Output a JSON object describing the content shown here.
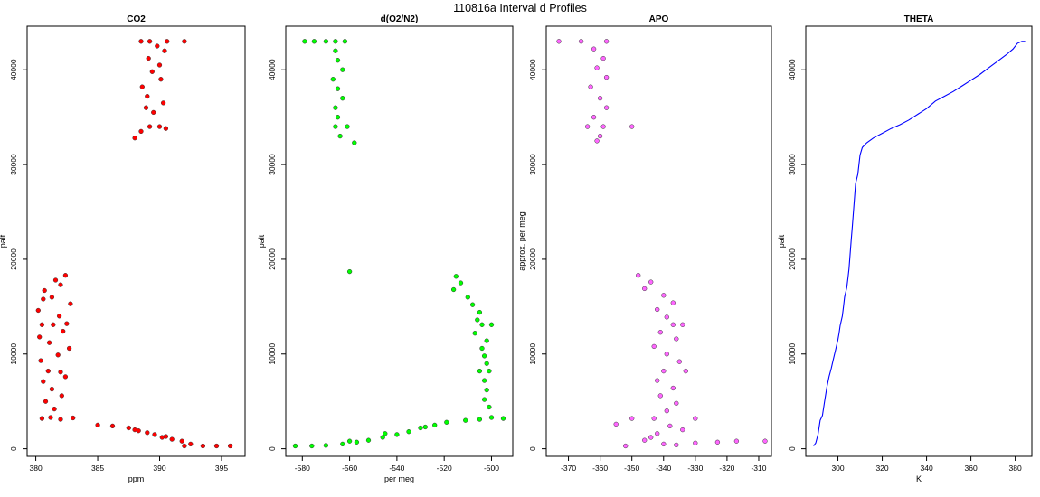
{
  "figure": {
    "title": "110816a   Interval d Profiles"
  },
  "chart_data": [
    {
      "type": "scatter",
      "title": "CO2",
      "xlabel": "ppm",
      "ylabel": "palt",
      "xlim": [
        379.3,
        396.9
      ],
      "ylim": [
        -800,
        44600
      ],
      "xticks": [
        380,
        385,
        390,
        395
      ],
      "yticks": [
        0,
        10000,
        20000,
        30000,
        40000
      ],
      "color": "#ff0000",
      "series": [
        {
          "points": [
            [
              380.5,
              3200
            ],
            [
              381.2,
              3300
            ],
            [
              382.0,
              3100
            ],
            [
              383.0,
              3250
            ],
            [
              381.5,
              4200
            ],
            [
              380.8,
              5000
            ],
            [
              382.1,
              5600
            ],
            [
              381.3,
              6300
            ],
            [
              380.6,
              7100
            ],
            [
              382.4,
              7600
            ],
            [
              381.0,
              8200
            ],
            [
              382.0,
              8100
            ],
            [
              380.4,
              9300
            ],
            [
              381.8,
              9900
            ],
            [
              382.7,
              10600
            ],
            [
              381.1,
              11200
            ],
            [
              380.3,
              11800
            ],
            [
              382.2,
              12400
            ],
            [
              381.4,
              13100
            ],
            [
              380.5,
              13100
            ],
            [
              382.5,
              13200
            ],
            [
              381.9,
              14000
            ],
            [
              380.2,
              14600
            ],
            [
              382.8,
              15300
            ],
            [
              381.3,
              16000
            ],
            [
              380.7,
              16700
            ],
            [
              382.0,
              17300
            ],
            [
              381.6,
              17800
            ],
            [
              382.4,
              18300
            ],
            [
              380.6,
              15800
            ],
            [
              385.0,
              2500
            ],
            [
              386.2,
              2400
            ],
            [
              387.5,
              2200
            ],
            [
              388.3,
              1900
            ],
            [
              389.0,
              1700
            ],
            [
              389.6,
              1500
            ],
            [
              390.2,
              1200
            ],
            [
              391.0,
              1000
            ],
            [
              391.8,
              800
            ],
            [
              392.5,
              500
            ],
            [
              393.5,
              300
            ],
            [
              394.6,
              300
            ],
            [
              395.7,
              300
            ],
            [
              392.0,
              300
            ],
            [
              388.0,
              2000
            ],
            [
              390.5,
              1300
            ],
            [
              388.0,
              32800
            ],
            [
              388.5,
              33500
            ],
            [
              389.2,
              34000
            ],
            [
              390.0,
              34000
            ],
            [
              389.5,
              35500
            ],
            [
              390.3,
              36500
            ],
            [
              389.0,
              37200
            ],
            [
              388.6,
              38200
            ],
            [
              390.1,
              39000
            ],
            [
              389.4,
              39800
            ],
            [
              390.0,
              40500
            ],
            [
              389.1,
              41200
            ],
            [
              390.4,
              42000
            ],
            [
              389.8,
              42500
            ],
            [
              390.6,
              43000
            ],
            [
              388.5,
              43000
            ],
            [
              392.0,
              43000
            ],
            [
              389.2,
              43000
            ],
            [
              388.9,
              36000
            ],
            [
              390.5,
              33800
            ]
          ]
        }
      ]
    },
    {
      "type": "scatter",
      "title": "d(O2/N2)",
      "xlabel": "per meg",
      "ylabel": "palt",
      "xlim": [
        -587,
        -491
      ],
      "ylim": [
        -800,
        44600
      ],
      "xticks": [
        -580,
        -560,
        -540,
        -520,
        -500
      ],
      "yticks": [
        0,
        10000,
        20000,
        30000,
        40000
      ],
      "color": "#00ff00",
      "series": [
        {
          "points": [
            [
              -579,
              43000
            ],
            [
              -570,
              43000
            ],
            [
              -562,
              43000
            ],
            [
              -575,
              43000
            ],
            [
              -566,
              43000
            ],
            [
              -566,
              42000
            ],
            [
              -565,
              41000
            ],
            [
              -563,
              40000
            ],
            [
              -567,
              39000
            ],
            [
              -565,
              38000
            ],
            [
              -563,
              37000
            ],
            [
              -566,
              36000
            ],
            [
              -565,
              35000
            ],
            [
              -566,
              34000
            ],
            [
              -561,
              34000
            ],
            [
              -558,
              32300
            ],
            [
              -564,
              33000
            ],
            [
              -560,
              18700
            ],
            [
              -515,
              18200
            ],
            [
              -513,
              17500
            ],
            [
              -516,
              16800
            ],
            [
              -510,
              16000
            ],
            [
              -508,
              15200
            ],
            [
              -505,
              14400
            ],
            [
              -506,
              13600
            ],
            [
              -504,
              13100
            ],
            [
              -500,
              13100
            ],
            [
              -507,
              12200
            ],
            [
              -502,
              11400
            ],
            [
              -504,
              10600
            ],
            [
              -503,
              9800
            ],
            [
              -502,
              9000
            ],
            [
              -501,
              8200
            ],
            [
              -505,
              8200
            ],
            [
              -503,
              7200
            ],
            [
              -502,
              6200
            ],
            [
              -503,
              5200
            ],
            [
              -501,
              4400
            ],
            [
              -500,
              3300
            ],
            [
              -495,
              3200
            ],
            [
              -505,
              3100
            ],
            [
              -511,
              3000
            ],
            [
              -519,
              2800
            ],
            [
              -524,
              2500
            ],
            [
              -530,
              2200
            ],
            [
              -535,
              1800
            ],
            [
              -540,
              1500
            ],
            [
              -546,
              1200
            ],
            [
              -552,
              900
            ],
            [
              -557,
              700
            ],
            [
              -563,
              500
            ],
            [
              -570,
              350
            ],
            [
              -576,
              300
            ],
            [
              -583,
              300
            ],
            [
              -560,
              800
            ],
            [
              -545,
              1600
            ],
            [
              -528,
              2300
            ]
          ]
        }
      ]
    },
    {
      "type": "scatter",
      "title": "APO",
      "xlabel": "",
      "ylabel": "approx. per meg",
      "xlim": [
        -377,
        -306
      ],
      "ylim": [
        -800,
        44600
      ],
      "xticks": [
        -370,
        -360,
        -350,
        -340,
        -330,
        -320,
        -310
      ],
      "yticks": [
        0,
        10000,
        20000,
        30000,
        40000
      ],
      "color": "#ff66ff",
      "series": [
        {
          "points": [
            [
              -373,
              43000
            ],
            [
              -366,
              43000
            ],
            [
              -358,
              43000
            ],
            [
              -362,
              42200
            ],
            [
              -359,
              41200
            ],
            [
              -361,
              40200
            ],
            [
              -358,
              39200
            ],
            [
              -363,
              38200
            ],
            [
              -360,
              37000
            ],
            [
              -358,
              36000
            ],
            [
              -362,
              35000
            ],
            [
              -359,
              34000
            ],
            [
              -364,
              34000
            ],
            [
              -350,
              34000
            ],
            [
              -360,
              33000
            ],
            [
              -361,
              32500
            ],
            [
              -348,
              18300
            ],
            [
              -344,
              17600
            ],
            [
              -346,
              16900
            ],
            [
              -340,
              16200
            ],
            [
              -337,
              15400
            ],
            [
              -342,
              14700
            ],
            [
              -339,
              13900
            ],
            [
              -337,
              13100
            ],
            [
              -334,
              13100
            ],
            [
              -341,
              12300
            ],
            [
              -336,
              11600
            ],
            [
              -343,
              10800
            ],
            [
              -339,
              10000
            ],
            [
              -335,
              9200
            ],
            [
              -340,
              8200
            ],
            [
              -333,
              8200
            ],
            [
              -342,
              7200
            ],
            [
              -337,
              6400
            ],
            [
              -341,
              5600
            ],
            [
              -336,
              4800
            ],
            [
              -339,
              4000
            ],
            [
              -343,
              3200
            ],
            [
              -330,
              3200
            ],
            [
              -350,
              3200
            ],
            [
              -338,
              2400
            ],
            [
              -342,
              1600
            ],
            [
              -346,
              900
            ],
            [
              -340,
              500
            ],
            [
              -336,
              400
            ],
            [
              -352,
              300
            ],
            [
              -330,
              600
            ],
            [
              -323,
              700
            ],
            [
              -317,
              800
            ],
            [
              -308,
              800
            ],
            [
              -344,
              1200
            ],
            [
              -334,
              2000
            ],
            [
              -355,
              2600
            ]
          ]
        }
      ]
    },
    {
      "type": "line",
      "title": "THETA",
      "xlabel": "K",
      "ylabel": "palt",
      "xlim": [
        285.5,
        387.5
      ],
      "ylim": [
        -800,
        44600
      ],
      "xticks": [
        300,
        320,
        340,
        360,
        380
      ],
      "yticks": [
        0,
        10000,
        20000,
        30000,
        40000
      ],
      "color": "#0000ff",
      "series": [
        {
          "points": [
            [
              289,
              300
            ],
            [
              290,
              600
            ],
            [
              291,
              1500
            ],
            [
              292,
              3000
            ],
            [
              293,
              3500
            ],
            [
              294,
              5000
            ],
            [
              295,
              6500
            ],
            [
              296,
              7600
            ],
            [
              297,
              8500
            ],
            [
              298,
              9500
            ],
            [
              299,
              10500
            ],
            [
              300,
              11500
            ],
            [
              300.5,
              12200
            ],
            [
              301,
              13000
            ],
            [
              302,
              14000
            ],
            [
              302.5,
              15000
            ],
            [
              303,
              16000
            ],
            [
              304,
              17000
            ],
            [
              304.5,
              18000
            ],
            [
              305,
              19000
            ],
            [
              305.5,
              20500
            ],
            [
              306,
              22000
            ],
            [
              306.5,
              23500
            ],
            [
              307,
              25000
            ],
            [
              307.5,
              26500
            ],
            [
              308,
              28000
            ],
            [
              309,
              29000
            ],
            [
              309.5,
              30000
            ],
            [
              310,
              31000
            ],
            [
              311,
              31800
            ],
            [
              313,
              32300
            ],
            [
              316,
              32800
            ],
            [
              320,
              33300
            ],
            [
              324,
              33800
            ],
            [
              328,
              34200
            ],
            [
              332,
              34700
            ],
            [
              336,
              35300
            ],
            [
              340,
              35900
            ],
            [
              344,
              36700
            ],
            [
              348,
              37200
            ],
            [
              352,
              37700
            ],
            [
              356,
              38300
            ],
            [
              360,
              38900
            ],
            [
              364,
              39500
            ],
            [
              368,
              40200
            ],
            [
              372,
              40900
            ],
            [
              376,
              41600
            ],
            [
              379,
              42200
            ],
            [
              381,
              42800
            ],
            [
              383,
              43000
            ],
            [
              384.5,
              43000
            ]
          ]
        }
      ]
    }
  ]
}
